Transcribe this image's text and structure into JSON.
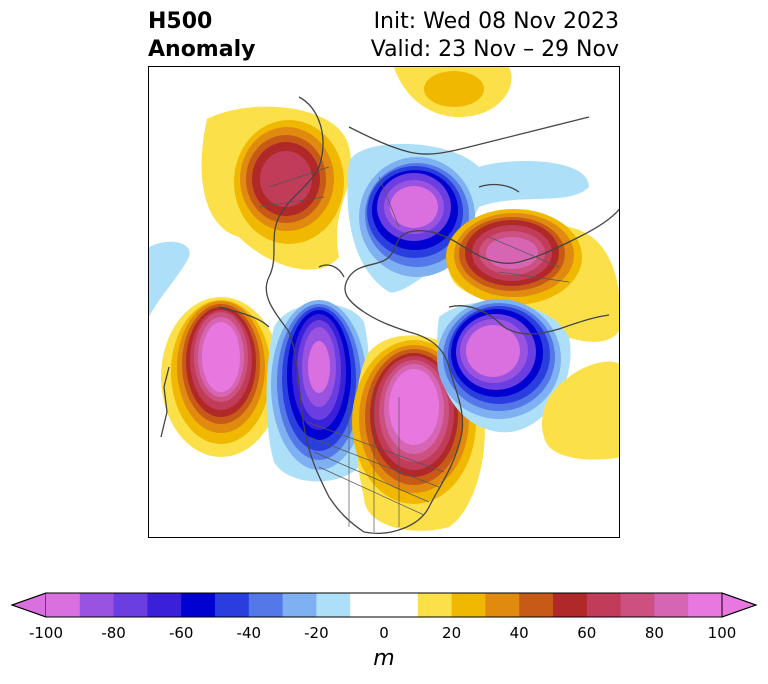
{
  "title": {
    "left_line1": "H500",
    "left_line2": "Anomaly",
    "right_line1": "Init: Wed 08 Nov 2023",
    "right_line2": "Valid: 23 Nov – 29 Nov"
  },
  "colorbar": {
    "unit": "m",
    "ticks": [
      "-100",
      "-80",
      "-60",
      "-40",
      "-20",
      "0",
      "20",
      "40",
      "60",
      "80",
      "100"
    ],
    "range": [
      -100,
      100
    ],
    "step": 10,
    "extend": "both",
    "colors": [
      "#da70e0",
      "#9a52e0",
      "#6a3ee0",
      "#3a20d8",
      "#0000d0",
      "#2a3ee0",
      "#5478e8",
      "#7eb0f2",
      "#ade0f8",
      "#ffffff",
      "#ffffff",
      "#fbe04a",
      "#f0b800",
      "#e08a10",
      "#c85a18",
      "#b02828",
      "#c03c58",
      "#cc5080",
      "#d666b4",
      "#e878e0"
    ]
  },
  "map": {
    "variable": "500 hPa geopotential height anomaly",
    "projection": "north-polar stereographic"
  }
}
